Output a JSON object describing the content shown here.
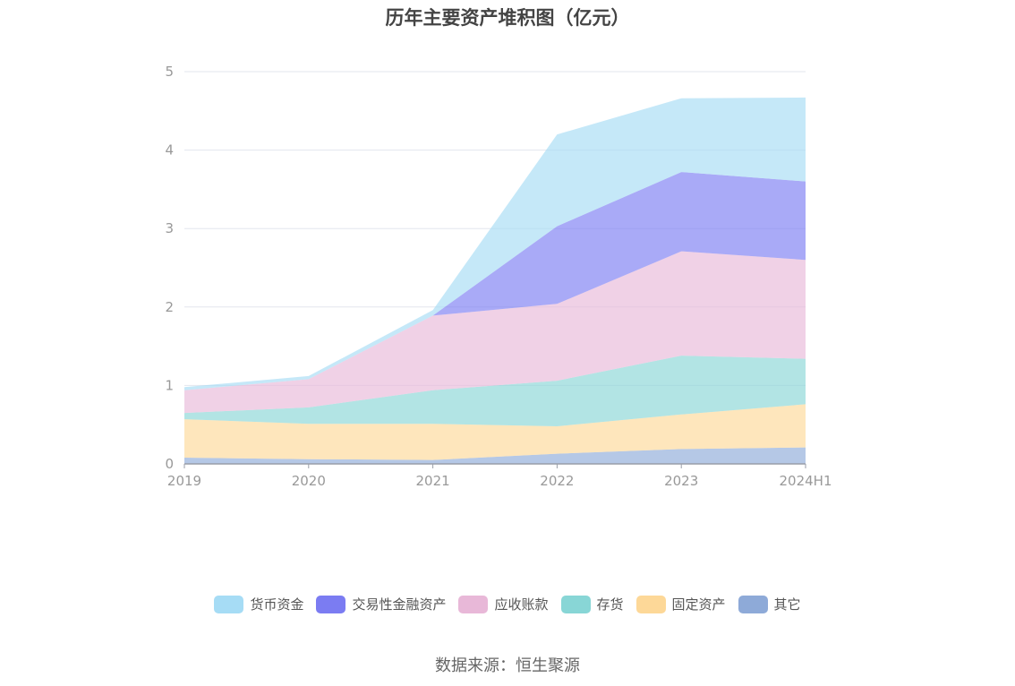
{
  "chart_data": {
    "type": "area",
    "stacked": true,
    "title": "历年主要资产堆积图（亿元）",
    "categories": [
      "2019",
      "2020",
      "2021",
      "2022",
      "2023",
      "2024H1"
    ],
    "ylim": [
      0,
      5
    ],
    "yticks": [
      "0",
      "1",
      "2",
      "3",
      "4",
      "5"
    ],
    "grid": true,
    "legend_position": "bottom",
    "series": [
      {
        "name": "其它",
        "color": "#8eaad8",
        "values": [
          0.08,
          0.06,
          0.05,
          0.13,
          0.19,
          0.21
        ]
      },
      {
        "name": "固定资产",
        "color": "#fdd898",
        "values": [
          0.49,
          0.45,
          0.46,
          0.35,
          0.44,
          0.55
        ]
      },
      {
        "name": "存货",
        "color": "#88d6d6",
        "values": [
          0.08,
          0.21,
          0.43,
          0.58,
          0.75,
          0.58
        ]
      },
      {
        "name": "应收账款",
        "color": "#e8b8d8",
        "values": [
          0.29,
          0.36,
          0.95,
          0.98,
          1.33,
          1.26
        ]
      },
      {
        "name": "交易性金融资产",
        "color": "#7b7cf2",
        "values": [
          0,
          0,
          0,
          0.99,
          1.01,
          1.0
        ]
      },
      {
        "name": "货币资金",
        "color": "#a6dcf5",
        "values": [
          0.04,
          0.04,
          0.07,
          1.17,
          0.94,
          1.07
        ]
      }
    ]
  },
  "legend_order": [
    "货币资金",
    "交易性金融资产",
    "应收账款",
    "存货",
    "固定资产",
    "其它"
  ],
  "source_text": "数据来源：恒生聚源"
}
